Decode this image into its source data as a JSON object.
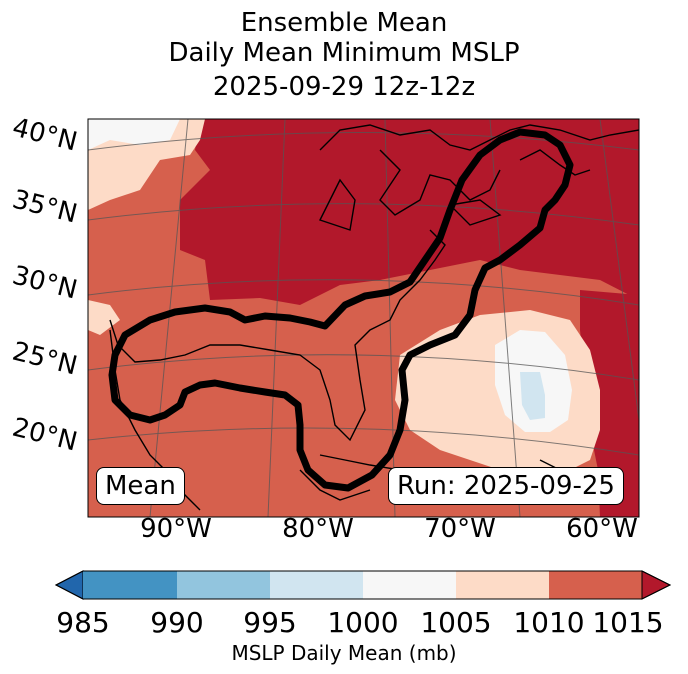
{
  "title": {
    "line1": "Ensemble Mean",
    "line2": "Daily Mean Minimum MSLP",
    "line3": "2025-09-29 12z-12z"
  },
  "map": {
    "lat_labels": [
      "40°N",
      "35°N",
      "30°N",
      "25°N",
      "20°N"
    ],
    "lon_labels": [
      "90°W",
      "80°W",
      "70°W",
      "60°W"
    ],
    "mean_label": "Mean",
    "run_label": "Run: 2025-09-25",
    "colors": {
      "c1010_1015": "#b2182b",
      "c1005_1010": "#d6604d",
      "c1000_1005": "#fddbc7",
      "c995_1000": "#f7f7f7",
      "c990_995": "#d1e5f0"
    }
  },
  "colorbar": {
    "ticks": [
      "985",
      "990",
      "995",
      "1000",
      "1005",
      "1010",
      "1015"
    ],
    "label": "MSLP Daily Mean (mb)",
    "colors": [
      "#2166ac",
      "#4393c3",
      "#92c5de",
      "#d1e5f0",
      "#f7f7f7",
      "#fddbc7",
      "#d6604d",
      "#b2182b"
    ]
  }
}
